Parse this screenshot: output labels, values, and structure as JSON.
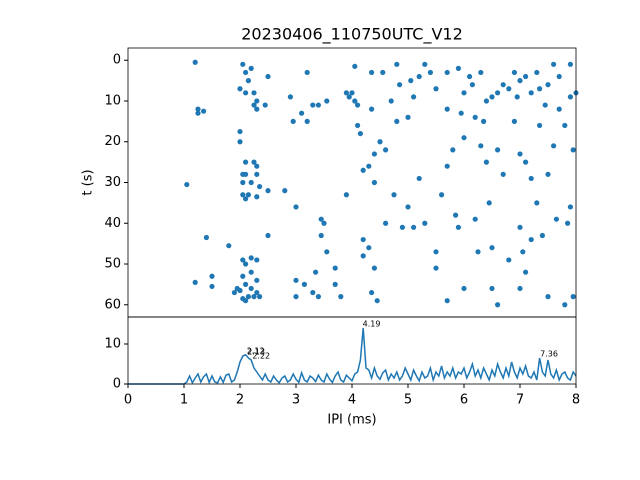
{
  "chart_data": [
    {
      "type": "scatter",
      "title": "20230406_110750UTC_V12",
      "ylabel": "t (s)",
      "color": "#1f77b4",
      "xlim": [
        0,
        8
      ],
      "ylim": [
        63,
        -3
      ],
      "yticks": [
        0,
        10,
        20,
        30,
        40,
        50,
        60
      ],
      "x": [
        1.2,
        1.25,
        1.25,
        1.35,
        1.05,
        1.2,
        1.4,
        1.5,
        1.5,
        1.8,
        1.9,
        1.95,
        2.05,
        2.1,
        2.2,
        2.15,
        2.0,
        2.1,
        2.25,
        2.3,
        2.25,
        2.3,
        2.0,
        2.0,
        2.1,
        2.25,
        2.3,
        2.05,
        2.1,
        2.3,
        2.05,
        2.2,
        2.35,
        2.05,
        2.15,
        2.3,
        2.1,
        2.5,
        2.2,
        2.05,
        2.3,
        2.1,
        2.2,
        2.05,
        2.3,
        2.1,
        2.2,
        2.0,
        2.3,
        2.15,
        2.25,
        2.05,
        2.35,
        2.1,
        2.5,
        2.45,
        2.5,
        2.8,
        2.9,
        2.95,
        3.0,
        3.0,
        3.0,
        3.15,
        3.1,
        3.2,
        3.2,
        3.3,
        3.35,
        3.4,
        3.3,
        3.4,
        3.45,
        3.5,
        3.45,
        3.55,
        3.55,
        3.7,
        3.7,
        3.8,
        3.9,
        3.95,
        3.9,
        4.0,
        4.05,
        4.1,
        4.1,
        4.05,
        4.15,
        4.2,
        4.2,
        4.2,
        4.3,
        4.3,
        4.35,
        4.4,
        4.4,
        4.4,
        4.35,
        4.45,
        4.35,
        4.5,
        4.55,
        4.6,
        4.6,
        4.7,
        4.75,
        4.8,
        4.8,
        4.85,
        4.9,
        5.0,
        5.0,
        5.05,
        5.1,
        5.1,
        5.2,
        5.3,
        5.3,
        5.5,
        5.5,
        5.5,
        5.6,
        5.7,
        5.7,
        5.7,
        5.8,
        5.85,
        5.9,
        5.95,
        6.0,
        6.0,
        6.1,
        6.0,
        6.2,
        6.2,
        6.25,
        6.3,
        6.35,
        6.4,
        6.45,
        6.5,
        6.5,
        6.5,
        6.6,
        6.6,
        6.7,
        6.8,
        6.8,
        6.9,
        7.0,
        7.0,
        7.0,
        7.05,
        7.1,
        7.1,
        7.2,
        7.2,
        7.3,
        7.3,
        7.35,
        7.4,
        7.45,
        7.5,
        7.5,
        7.5,
        7.6,
        7.6,
        7.65,
        7.7,
        7.8,
        7.85,
        7.9,
        7.9,
        7.95,
        7.95,
        8.0,
        7.0,
        7.8,
        5.7,
        5.9,
        6.3,
        6.6,
        6.7,
        6.9,
        7.1,
        7.2,
        7.7,
        7.9,
        6.4,
        5.2,
        5.4,
        6.15,
        7.35,
        6.95
      ],
      "values": [
        0.5,
        12,
        13,
        12.5,
        30.5,
        54.5,
        43.5,
        53,
        55.5,
        45.5,
        57,
        56,
        1,
        3,
        2,
        5,
        7,
        8,
        8,
        10,
        11,
        12,
        17.5,
        20,
        25,
        25,
        26,
        28,
        28,
        28,
        30,
        30,
        31,
        33,
        33,
        33.5,
        34,
        32,
        48.5,
        49,
        49,
        50,
        52,
        53,
        54,
        55,
        56,
        56.5,
        57,
        58,
        58,
        58.5,
        58,
        59,
        4,
        11,
        43,
        32,
        9,
        15,
        36,
        54,
        58,
        55,
        13,
        3,
        15,
        11,
        52,
        11,
        57,
        58,
        39,
        40,
        43,
        10,
        47,
        51,
        55,
        58,
        8,
        9,
        33,
        8,
        10,
        11,
        16,
        1.5,
        18,
        27,
        44,
        48,
        46,
        26,
        12,
        23,
        30,
        51,
        57,
        59,
        3,
        20,
        3,
        22,
        40,
        10,
        33,
        1,
        15,
        6,
        41,
        14,
        36,
        5,
        9,
        41,
        29,
        1,
        40,
        7,
        47,
        51,
        33,
        26,
        59,
        12,
        22,
        38,
        41,
        13,
        8,
        19,
        4,
        56,
        14,
        39,
        47,
        21,
        15,
        25,
        35,
        9,
        46,
        56,
        60,
        22,
        28,
        7,
        49,
        15,
        5,
        23,
        41,
        47,
        25,
        52,
        29,
        44,
        3,
        35,
        16,
        43,
        11,
        6,
        28,
        58,
        1,
        21,
        39,
        12,
        16,
        40,
        9,
        36,
        22,
        58,
        8,
        56,
        60,
        3,
        2,
        3,
        8,
        6,
        3,
        4,
        8,
        4,
        1,
        10,
        4,
        3,
        6,
        7,
        9
      ]
    },
    {
      "type": "line",
      "xlabel": "IPI (ms)",
      "color": "#1f77b4",
      "xlim": [
        0,
        8
      ],
      "xticks": [
        0,
        1,
        2,
        3,
        4,
        5,
        6,
        7,
        8
      ],
      "ylim": [
        0,
        16.75
      ],
      "yticks": [
        0,
        10
      ],
      "x": [
        0,
        0.05,
        0.1,
        0.15,
        0.2,
        0.25,
        0.3,
        0.35,
        0.4,
        0.45,
        0.5,
        0.55,
        0.6,
        0.65,
        0.7,
        0.75,
        0.8,
        0.85,
        0.9,
        0.95,
        1,
        1.05,
        1.1,
        1.15,
        1.2,
        1.25,
        1.3,
        1.35,
        1.4,
        1.45,
        1.5,
        1.55,
        1.6,
        1.65,
        1.7,
        1.75,
        1.8,
        1.85,
        1.9,
        1.95,
        2,
        2.05,
        2.1,
        2.15,
        2.2,
        2.25,
        2.3,
        2.35,
        2.4,
        2.45,
        2.5,
        2.55,
        2.6,
        2.65,
        2.7,
        2.75,
        2.8,
        2.85,
        2.9,
        2.95,
        3,
        3.05,
        3.1,
        3.15,
        3.2,
        3.25,
        3.3,
        3.35,
        3.4,
        3.45,
        3.5,
        3.55,
        3.6,
        3.65,
        3.7,
        3.75,
        3.8,
        3.85,
        3.9,
        3.95,
        4,
        4.05,
        4.1,
        4.15,
        4.2,
        4.25,
        4.3,
        4.35,
        4.4,
        4.45,
        4.5,
        4.55,
        4.6,
        4.65,
        4.7,
        4.75,
        4.8,
        4.85,
        4.9,
        4.95,
        5,
        5.05,
        5.1,
        5.15,
        5.2,
        5.25,
        5.3,
        5.35,
        5.4,
        5.45,
        5.5,
        5.55,
        5.6,
        5.65,
        5.7,
        5.75,
        5.8,
        5.85,
        5.9,
        5.95,
        6,
        6.05,
        6.1,
        6.15,
        6.2,
        6.25,
        6.3,
        6.35,
        6.4,
        6.45,
        6.5,
        6.55,
        6.6,
        6.65,
        6.7,
        6.75,
        6.8,
        6.85,
        6.9,
        6.95,
        7,
        7.05,
        7.1,
        7.15,
        7.2,
        7.25,
        7.3,
        7.35,
        7.4,
        7.45,
        7.5,
        7.55,
        7.6,
        7.65,
        7.7,
        7.75,
        7.8,
        7.85,
        7.9,
        7.95,
        8
      ],
      "values": [
        0,
        0,
        0,
        0,
        0,
        0,
        0,
        0,
        0,
        0,
        0,
        0,
        0,
        0,
        0,
        0,
        0,
        0,
        0,
        0,
        0,
        0.5,
        2,
        0.3,
        1.5,
        2.5,
        0.5,
        1.8,
        2.5,
        0.4,
        2,
        0.5,
        0.3,
        1.8,
        0.4,
        2.2,
        2.5,
        0.5,
        1,
        3,
        5.5,
        7,
        7.3,
        6.5,
        6,
        4,
        3,
        2,
        1,
        2.5,
        1,
        0.5,
        2,
        1,
        0.3,
        1.5,
        2,
        0.5,
        1,
        2.5,
        1.2,
        0.4,
        2.8,
        1,
        0.5,
        2,
        1.5,
        0.6,
        2.2,
        1,
        0.5,
        2.5,
        1.2,
        0.4,
        2,
        3,
        1,
        0.5,
        2.2,
        1.5,
        0.8,
        2.5,
        3,
        6,
        14,
        4,
        3.5,
        1.5,
        4,
        2,
        1.2,
        2.8,
        3.5,
        1,
        2.5,
        1.5,
        3,
        1,
        2,
        4,
        2.5,
        1,
        3.5,
        2,
        0.8,
        3,
        1.5,
        2,
        4,
        1,
        3,
        2,
        4.5,
        1.5,
        3,
        2,
        4,
        1.5,
        3,
        2.5,
        4,
        1.5,
        3,
        5,
        2,
        3.5,
        1.5,
        4,
        2.5,
        1,
        3.5,
        2,
        5,
        3,
        1.5,
        4,
        2,
        5.5,
        3,
        1.5,
        4,
        2.5,
        4.5,
        2,
        1.5,
        3,
        1,
        6.5,
        3,
        2,
        6,
        2.5,
        1.5,
        3.5,
        1,
        2.5,
        3,
        1.5,
        1,
        3,
        2
      ],
      "annotations": [
        {
          "label": "2.12",
          "x": 2.12,
          "y": 7.3
        },
        {
          "label": "2.13",
          "x": 2.13,
          "y": 7.0
        },
        {
          "label": "2.22",
          "x": 2.22,
          "y": 6.0
        },
        {
          "label": "4.19",
          "x": 4.19,
          "y": 14
        },
        {
          "label": "7.36",
          "x": 7.36,
          "y": 6.5
        }
      ]
    }
  ]
}
